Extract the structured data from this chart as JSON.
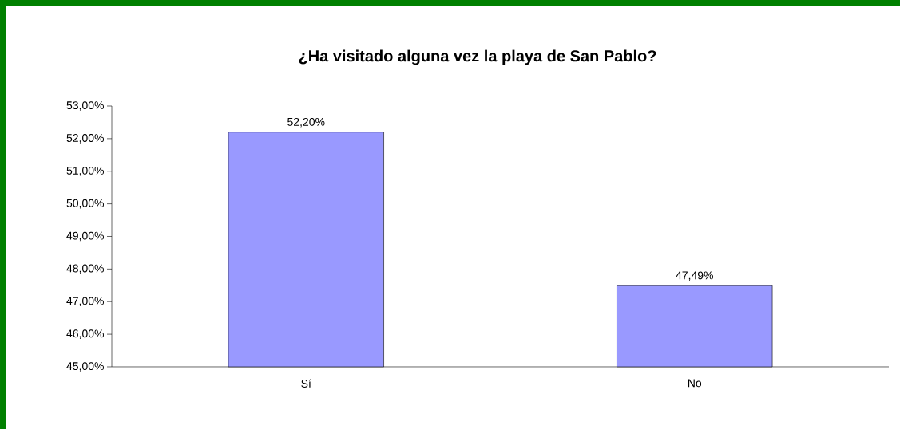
{
  "chart_data": {
    "type": "bar",
    "title": "¿Ha visitado alguna vez la playa de San Pablo?",
    "categories": [
      "Sí",
      "No"
    ],
    "values": [
      52.2,
      47.49
    ],
    "value_labels": [
      "52,20%",
      "47,49%"
    ],
    "color": "#9999ff",
    "ylim": [
      45,
      53
    ],
    "yticks": [
      {
        "value": 45,
        "label": "45,00%"
      },
      {
        "value": 46,
        "label": "46,00%"
      },
      {
        "value": 47,
        "label": "47,00%"
      },
      {
        "value": 48,
        "label": "48,00%"
      },
      {
        "value": 49,
        "label": "49,00%"
      },
      {
        "value": 50,
        "label": "50,00%"
      },
      {
        "value": 51,
        "label": "51,00%"
      },
      {
        "value": 52,
        "label": "52,00%"
      },
      {
        "value": 53,
        "label": "53,00%"
      }
    ],
    "grid": false
  }
}
